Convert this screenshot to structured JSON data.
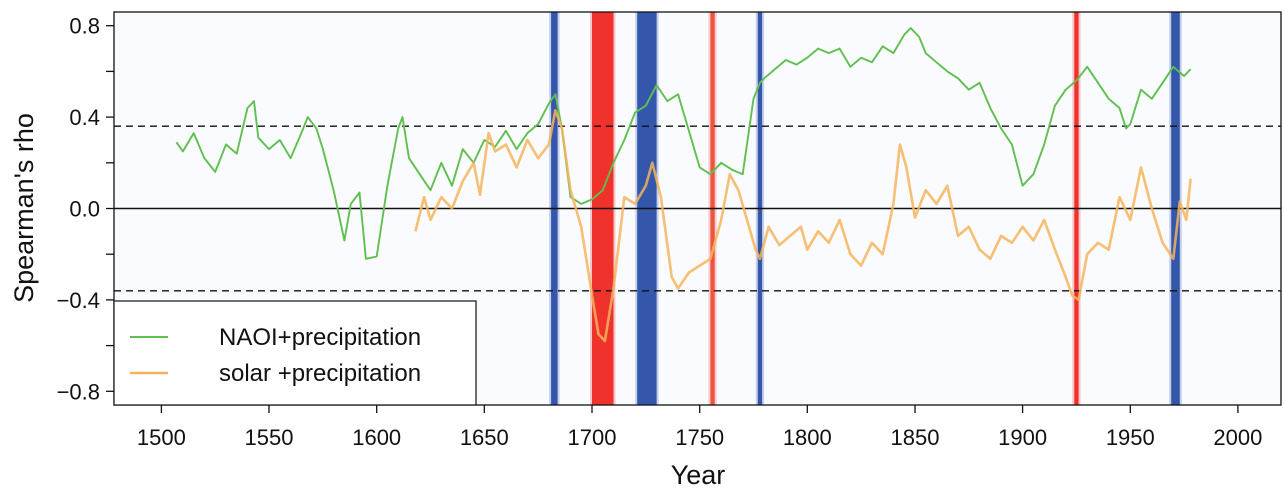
{
  "chart_data": {
    "type": "line",
    "title": "",
    "xlabel": "Year",
    "ylabel": "Spearman's rho",
    "xlim": [
      1478,
      2020
    ],
    "ylim": [
      -0.86,
      0.86
    ],
    "x_ticks": [
      1500,
      1550,
      1600,
      1650,
      1700,
      1750,
      1800,
      1850,
      1900,
      1950,
      2000
    ],
    "y_ticks": [
      0.8,
      0.6,
      0.4,
      0.2,
      0.0,
      -0.2,
      -0.4,
      -0.6,
      -0.8
    ],
    "y_tick_labels": [
      "0.8",
      "",
      "0.4",
      "",
      "0.0",
      "",
      "−0.4",
      "",
      "−0.8"
    ],
    "x_tick_labels": [
      "1500",
      "1550",
      "1600",
      "1650",
      "1700",
      "1750",
      "1800",
      "1850",
      "1900",
      "1950",
      "2000"
    ],
    "reference_lines": [
      {
        "y": 0.36,
        "style": "dashed"
      },
      {
        "y": 0.0,
        "style": "solid"
      },
      {
        "y": -0.36,
        "style": "dashed"
      }
    ],
    "legend_position": "bottom-left",
    "shaded_periods": [
      {
        "start": 1681,
        "end": 1684,
        "color": "#2c4fa8"
      },
      {
        "start": 1700,
        "end": 1710,
        "color": "#ee2a24"
      },
      {
        "start": 1721,
        "end": 1730,
        "color": "#2c4fa8"
      },
      {
        "start": 1755,
        "end": 1757,
        "color": "#ee4b36"
      },
      {
        "start": 1777,
        "end": 1779,
        "color": "#2c4fa8"
      },
      {
        "start": 1924,
        "end": 1926,
        "color": "#ee2a24"
      },
      {
        "start": 1969,
        "end": 1973,
        "color": "#2c4fa8"
      }
    ],
    "series": [
      {
        "name": "NAOI+precipitation",
        "color": "#5fbf4f",
        "x": [
          1507,
          1510,
          1515,
          1520,
          1525,
          1530,
          1535,
          1540,
          1543,
          1545,
          1550,
          1555,
          1560,
          1565,
          1568,
          1572,
          1575,
          1580,
          1585,
          1588,
          1592,
          1595,
          1600,
          1605,
          1610,
          1612,
          1615,
          1620,
          1625,
          1630,
          1635,
          1640,
          1645,
          1650,
          1655,
          1660,
          1665,
          1670,
          1675,
          1680,
          1683,
          1686,
          1690,
          1695,
          1700,
          1705,
          1710,
          1715,
          1720,
          1725,
          1730,
          1735,
          1740,
          1745,
          1750,
          1755,
          1760,
          1765,
          1770,
          1775,
          1778,
          1780,
          1785,
          1790,
          1795,
          1800,
          1805,
          1810,
          1815,
          1820,
          1825,
          1830,
          1835,
          1840,
          1845,
          1848,
          1852,
          1855,
          1860,
          1865,
          1870,
          1875,
          1880,
          1885,
          1890,
          1895,
          1900,
          1905,
          1910,
          1915,
          1920,
          1925,
          1930,
          1935,
          1940,
          1945,
          1948,
          1950,
          1955,
          1960,
          1965,
          1970,
          1975,
          1978
        ],
        "values": [
          0.29,
          0.25,
          0.33,
          0.22,
          0.16,
          0.28,
          0.24,
          0.44,
          0.47,
          0.31,
          0.26,
          0.3,
          0.22,
          0.33,
          0.4,
          0.35,
          0.26,
          0.08,
          -0.14,
          0.02,
          0.07,
          -0.22,
          -0.21,
          0.1,
          0.35,
          0.4,
          0.22,
          0.15,
          0.08,
          0.2,
          0.1,
          0.26,
          0.2,
          0.3,
          0.27,
          0.34,
          0.26,
          0.33,
          0.37,
          0.46,
          0.5,
          0.35,
          0.05,
          0.02,
          0.04,
          0.08,
          0.2,
          0.3,
          0.42,
          0.45,
          0.54,
          0.47,
          0.5,
          0.34,
          0.18,
          0.15,
          0.2,
          0.17,
          0.15,
          0.48,
          0.55,
          0.57,
          0.61,
          0.65,
          0.63,
          0.66,
          0.7,
          0.68,
          0.7,
          0.62,
          0.66,
          0.64,
          0.71,
          0.68,
          0.76,
          0.79,
          0.75,
          0.68,
          0.64,
          0.6,
          0.57,
          0.52,
          0.55,
          0.44,
          0.35,
          0.28,
          0.1,
          0.15,
          0.28,
          0.45,
          0.52,
          0.56,
          0.62,
          0.55,
          0.48,
          0.44,
          0.35,
          0.37,
          0.52,
          0.48,
          0.55,
          0.62,
          0.58,
          0.61
        ]
      },
      {
        "name": "solar +precipitation",
        "color": "#f5b45a",
        "x": [
          1618,
          1622,
          1625,
          1630,
          1635,
          1640,
          1645,
          1648,
          1652,
          1655,
          1660,
          1665,
          1670,
          1675,
          1680,
          1683,
          1686,
          1690,
          1695,
          1700,
          1703,
          1706,
          1710,
          1715,
          1720,
          1725,
          1728,
          1732,
          1737,
          1740,
          1745,
          1750,
          1755,
          1760,
          1764,
          1768,
          1772,
          1776,
          1778,
          1782,
          1787,
          1792,
          1797,
          1800,
          1805,
          1810,
          1815,
          1820,
          1825,
          1830,
          1835,
          1840,
          1843,
          1846,
          1850,
          1855,
          1860,
          1865,
          1870,
          1875,
          1880,
          1885,
          1890,
          1895,
          1900,
          1905,
          1910,
          1915,
          1920,
          1923,
          1926,
          1930,
          1935,
          1940,
          1945,
          1950,
          1955,
          1960,
          1965,
          1970,
          1973,
          1976,
          1978
        ],
        "values": [
          -0.1,
          0.05,
          -0.05,
          0.05,
          0.0,
          0.12,
          0.2,
          0.06,
          0.33,
          0.25,
          0.28,
          0.18,
          0.3,
          0.22,
          0.28,
          0.43,
          0.35,
          0.08,
          -0.08,
          -0.38,
          -0.55,
          -0.58,
          -0.35,
          0.05,
          0.02,
          0.1,
          0.2,
          0.05,
          -0.3,
          -0.35,
          -0.28,
          -0.25,
          -0.22,
          -0.05,
          0.15,
          0.08,
          -0.05,
          -0.18,
          -0.22,
          -0.08,
          -0.16,
          -0.12,
          -0.08,
          -0.18,
          -0.1,
          -0.15,
          -0.05,
          -0.2,
          -0.25,
          -0.15,
          -0.2,
          0.02,
          0.28,
          0.18,
          -0.04,
          0.08,
          0.02,
          0.1,
          -0.12,
          -0.08,
          -0.18,
          -0.22,
          -0.12,
          -0.15,
          -0.08,
          -0.14,
          -0.05,
          -0.18,
          -0.3,
          -0.38,
          -0.4,
          -0.2,
          -0.15,
          -0.18,
          0.05,
          -0.05,
          0.18,
          0.0,
          -0.15,
          -0.22,
          0.03,
          -0.05,
          0.13
        ]
      }
    ]
  }
}
